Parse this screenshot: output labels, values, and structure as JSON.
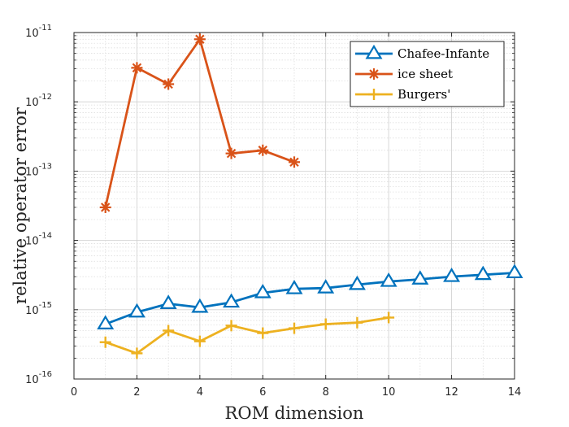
{
  "chart_data": {
    "type": "line",
    "xlabel": "ROM dimension",
    "ylabel": "relative operator error",
    "xlim": [
      0,
      14
    ],
    "ylim": [
      1e-16,
      1e-11
    ],
    "yscale": "log",
    "grid": true,
    "minor_grid": true,
    "legend_position": "top-right",
    "x_ticks": [
      "0",
      "2",
      "4",
      "6",
      "8",
      "10",
      "12",
      "14"
    ],
    "y_ticks": [
      {
        "base": "10",
        "exp": "-16"
      },
      {
        "base": "10",
        "exp": "-15"
      },
      {
        "base": "10",
        "exp": "-14"
      },
      {
        "base": "10",
        "exp": "-13"
      },
      {
        "base": "10",
        "exp": "-12"
      },
      {
        "base": "10",
        "exp": "-11"
      }
    ],
    "series": [
      {
        "name": "Chafee-Infante",
        "color": "#0072BD",
        "marker": "triangle",
        "x": [
          1,
          2,
          3,
          4,
          5,
          6,
          7,
          8,
          9,
          10,
          11,
          12,
          13,
          14
        ],
        "y": [
          6.2e-16,
          9.2e-16,
          1.22e-15,
          1.08e-15,
          1.28e-15,
          1.75e-15,
          2e-15,
          2.05e-15,
          2.3e-15,
          2.55e-15,
          2.75e-15,
          3e-15,
          3.2e-15,
          3.4e-15
        ]
      },
      {
        "name": "ice sheet",
        "color": "#D95319",
        "marker": "asterisk",
        "x": [
          1,
          2,
          3,
          4,
          5,
          6,
          7
        ],
        "y": [
          3e-14,
          3.1e-12,
          1.8e-12,
          8e-12,
          1.8e-13,
          2e-13,
          1.35e-13
        ]
      },
      {
        "name": "Burgers'",
        "color": "#EDB120",
        "marker": "plus",
        "x": [
          1,
          2,
          3,
          4,
          5,
          6,
          7,
          8,
          9,
          10
        ],
        "y": [
          3.4e-16,
          2.35e-16,
          5e-16,
          3.5e-16,
          5.9e-16,
          4.6e-16,
          5.4e-16,
          6.2e-16,
          6.5e-16,
          7.7e-16
        ]
      }
    ]
  }
}
